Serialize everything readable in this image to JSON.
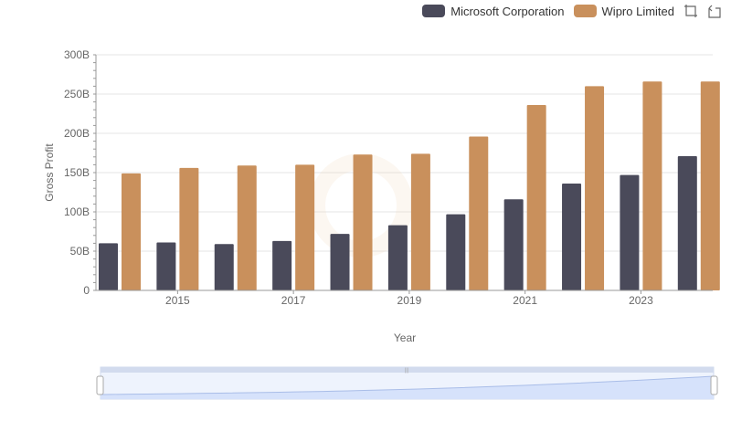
{
  "legend": {
    "series_a": "Microsoft Corporation",
    "series_b": "Wipro Limited"
  },
  "toolbox": {
    "icons": [
      "zoom-icon",
      "restore-icon"
    ]
  },
  "colors": {
    "series_a": "#4a4a5a",
    "series_b": "#c9905c",
    "grid": "#e6e6e6",
    "axis": "#999999",
    "slider": "#d6e2fb",
    "slider_border": "#aabbdd"
  },
  "chart_data": {
    "type": "bar",
    "categories": [
      "2014",
      "2015",
      "2016",
      "2017",
      "2018",
      "2019",
      "2020",
      "2021",
      "2022",
      "2023",
      "2024"
    ],
    "x_tick_labels": [
      "2015",
      "2017",
      "2019",
      "2021",
      "2023"
    ],
    "series": [
      {
        "name": "Microsoft Corporation",
        "values": [
          60,
          61,
          59,
          63,
          72,
          83,
          97,
          116,
          136,
          147,
          171
        ]
      },
      {
        "name": "Wipro Limited",
        "values": [
          149,
          156,
          159,
          160,
          173,
          174,
          196,
          236,
          260,
          266,
          266
        ]
      }
    ],
    "y_ticks": [
      "0",
      "50B",
      "100B",
      "150B",
      "200B",
      "250B",
      "300B"
    ],
    "ylim": [
      0,
      300
    ],
    "xlabel": "Year",
    "ylabel": "Gross Profit",
    "legend_position": "top-right",
    "grid": true
  }
}
